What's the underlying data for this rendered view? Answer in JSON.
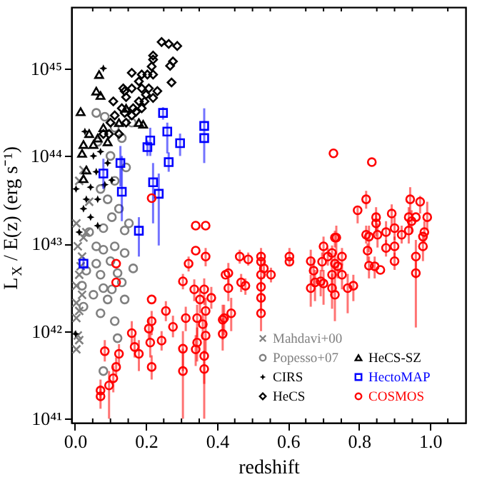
{
  "chart_data": {
    "type": "scatter",
    "xlabel": "redshift",
    "ylabel": "L$_{X}$ / E(z) (erg s⁻¹)",
    "log": "y",
    "grid": false,
    "legend": "bottom right",
    "xlim": [
      -0.01,
      1.1
    ],
    "xticks": [
      {
        "value": 0.0,
        "label": "0.0"
      },
      {
        "value": 0.05,
        "label": null
      },
      {
        "value": 0.1,
        "label": null
      },
      {
        "value": 0.15,
        "label": null
      },
      {
        "value": 0.2,
        "label": "0.2"
      },
      {
        "value": 0.25,
        "label": null
      },
      {
        "value": 0.3,
        "label": null
      },
      {
        "value": 0.35,
        "label": null
      },
      {
        "value": 0.4,
        "label": "0.4"
      },
      {
        "value": 0.45,
        "label": null
      },
      {
        "value": 0.5,
        "label": null
      },
      {
        "value": 0.55,
        "label": null
      },
      {
        "value": 0.6,
        "label": "0.6"
      },
      {
        "value": 0.65,
        "label": null
      },
      {
        "value": 0.7,
        "label": null
      },
      {
        "value": 0.75,
        "label": null
      },
      {
        "value": 0.8,
        "label": "0.8"
      },
      {
        "value": 0.85,
        "label": null
      },
      {
        "value": 0.9,
        "label": null
      },
      {
        "value": 0.95,
        "label": null
      },
      {
        "value": 1.0,
        "label": "1.0"
      },
      {
        "value": 1.05,
        "label": null
      }
    ],
    "ylim": [
      9e+40,
      5e+45
    ],
    "yticks": [
      {
        "value": 1e+41,
        "label": "10⁴¹"
      },
      {
        "value": 1e+42,
        "label": "10⁴²"
      },
      {
        "value": 1e+43,
        "label": "10⁴³"
      },
      {
        "value": 1e+44,
        "label": "10⁴⁴"
      },
      {
        "value": 1e+45,
        "label": "10⁴⁵"
      }
    ],
    "series": [
      {
        "name": "Mahdavi+00",
        "color": "#808080",
        "marker": "cross",
        "x": [
          0.008,
          0.012,
          0.004,
          0.012,
          0.004,
          0.02,
          0.004,
          0.012,
          0.016,
          0.02,
          0.008,
          0.024,
          0.004,
          0.024,
          0.012,
          0.04,
          0.004,
          0.032
        ],
        "values": [
          8.9e+41,
          7.9e+41,
          1.41e+42,
          1.7e+42,
          2.1e+42,
          2.6e+42,
          3.3e+42,
          4.4e+42,
          5.5e+42,
          7.1e+42,
          9.3e+42,
          1.17e+43,
          6.2e+41,
          6.9e+43,
          5.2e+43,
          3e+43,
          1.7e+43,
          1.35e+43
        ]
      },
      {
        "name": "Popesso+07",
        "color": "#808080",
        "marker": "circle",
        "x": [
          0.04,
          0.06,
          0.08,
          0.112,
          0.14,
          0.1,
          0.06,
          0.032,
          0.072,
          0.12,
          0.08,
          0.104,
          0.132,
          0.052,
          0.092,
          0.14,
          0.072,
          0.112,
          0.12,
          0.164,
          0.08,
          0.02,
          0.024,
          0.072,
          0.092,
          0.112,
          0.124,
          0.104,
          0.152,
          0.08,
          0.14,
          0.1,
          0.132,
          0.112,
          0.084,
          0.06,
          0.16,
          0.064,
          0.144
        ],
        "values": [
          1.35e+43,
          9.3e+42,
          8.5e+42,
          9.3e+42,
          7.8e+42,
          6.3e+42,
          5.9e+42,
          4.9e+42,
          4.4e+42,
          4.6e+42,
          3.1e+42,
          3e+42,
          3.6e+42,
          2.6e+42,
          2.3e+42,
          2.3e+42,
          1.6e+42,
          1.3e+42,
          8.3e+41,
          5.2e+42,
          3.5e+41,
          3.3e+42,
          1.9e+42,
          4.2e+43,
          3.2e+43,
          5.2e+43,
          2.5e+43,
          2e+43,
          1.7e+43,
          1.5e+43,
          1.41e+43,
          1e+44,
          1.6e+44,
          2.1e+44,
          2.8e+44,
          3.1e+44,
          2.4e+44,
          1.45e+44,
          7.4e+43
        ]
      },
      {
        "name": "CIRS",
        "color": "#000000",
        "marker": "star",
        "x": [
          0.08,
          0.028,
          0.052,
          0.072,
          0.092,
          0.044,
          0.032,
          0.024,
          0.064,
          0.003,
          0.104,
          0.06,
          0.084,
          0.044,
          0.064,
          0.002,
          0.012
        ],
        "values": [
          1e+45,
          1.9e+44,
          1e+44,
          1.12e+44,
          8.3e+43,
          4.4e+43,
          3.2e+43,
          2.5e+43,
          3.2e+43,
          4.2e+43,
          5.3e+43,
          6.6e+43,
          4.7e+43,
          2e+43,
          1.6e+43,
          9.3e+41,
          1.35e+43
        ]
      },
      {
        "name": "HeCS",
        "color": "#000000",
        "marker": "diamond",
        "x": [
          0.244,
          0.264,
          0.288,
          0.22,
          0.22,
          0.276,
          0.268,
          0.272,
          0.216,
          0.204,
          0.22,
          0.16,
          0.136,
          0.14,
          0.144,
          0.16,
          0.18,
          0.188,
          0.2,
          0.208,
          0.196,
          0.18,
          0.164,
          0.132,
          0.108,
          0.112,
          0.1,
          0.096,
          0.124,
          0.14,
          0.16,
          0.172,
          0.144,
          0.08,
          0.22,
          0.232,
          0.188,
          0.188
        ],
        "values": [
          2e+45,
          1.9e+45,
          1.8e+45,
          1.4e+45,
          1.26e+45,
          1.2e+45,
          1.07e+45,
          6.9e+44,
          1.05e+45,
          8.5e+44,
          8.5e+44,
          8.9e+44,
          5.9e+44,
          5.5e+44,
          4.7e+44,
          5.9e+44,
          7.1e+44,
          5.9e+44,
          5e+44,
          5.9e+44,
          4.2e+44,
          4.2e+44,
          3.5e+44,
          3.5e+44,
          4.2e+44,
          2.9e+44,
          2.4e+44,
          1.78e+44,
          1.78e+44,
          3.1e+44,
          2.9e+44,
          3.2e+44,
          2.4e+44,
          1.78e+44,
          4.6e+44,
          5.5e+44,
          3.5e+44,
          8.5e+44
        ]
      },
      {
        "name": "HeCS-SZ",
        "color": "#000000",
        "marker": "triangle",
        "x": [
          0.068,
          0.06,
          0.072,
          0.016,
          0.04,
          0.024,
          0.02,
          0.052,
          0.08,
          0.144,
          0.18,
          0.192,
          0.124,
          0.032,
          0.024,
          0.064,
          0.092
        ],
        "values": [
          8.5e+44,
          5.5e+44,
          4.9e+44,
          3.2e+44,
          1.8e+44,
          1.35e+44,
          1.07e+44,
          1.35e+44,
          2.1e+44,
          3.5e+44,
          2.4e+44,
          2.3e+44,
          2.4e+44,
          6.9e+43,
          5.5e+43,
          1.6e+44,
          1.45e+44
        ]
      },
      {
        "name": "HectoMAP",
        "color": "#0000ff",
        "marker": "square",
        "x": [
          0.08,
          0.128,
          0.132,
          0.18,
          0.204,
          0.212,
          0.22,
          0.236,
          0.248,
          0.26,
          0.264,
          0.296,
          0.364,
          0.364,
          0.024
        ],
        "values": [
          6.3e+43,
          8.3e+43,
          3.9e+43,
          1.4e+43,
          1.26e+44,
          1.5e+44,
          5e+43,
          3.7e+43,
          3.1e+44,
          1.9e+44,
          8.5e+43,
          1.4e+44,
          2.2e+44,
          1.6e+44,
          5.9e+42
        ],
        "errors": [
          [
            4.2e+43,
            9.3e+43
          ],
          [
            4.5e+43,
            1.3e+44
          ],
          [
            1.8e+43,
            1e+44
          ],
          [
            7.1e+42,
            2e+43
          ],
          [
            1e+44,
            1.5e+44
          ],
          [
            1e+44,
            2.1e+44
          ],
          [
            1.7e+43,
            8.3e+43
          ],
          [
            9.5e+42,
            6.3e+43
          ],
          [
            2.6e+44,
            3.6e+44
          ],
          [
            1.07e+44,
            2.4e+44
          ],
          [
            6.6e+43,
            1.1e+44
          ],
          [
            1e+44,
            1.8e+44
          ],
          [
            8.3e+43,
            3.5e+44
          ],
          null,
          [
            5e+42,
            7e+42
          ]
        ]
      },
      {
        "name": "COSMOS",
        "color": "#ff0000",
        "marker": "circle",
        "x": [
          0.728,
          0.836,
          0.796,
          0.82,
          0.848,
          0.892,
          0.944,
          0.972,
          0.94,
          0.96,
          0.992,
          0.948,
          0.848,
          0.828,
          0.852,
          0.876,
          0.9,
          0.94,
          0.984,
          0.736,
          0.216,
          0.34,
          0.368,
          0.416,
          0.416,
          0.44,
          0.432,
          0.432,
          0.464,
          0.468,
          0.48,
          0.488,
          0.524,
          0.524,
          0.532,
          0.524,
          0.524,
          0.524,
          0.524,
          0.552,
          0.604,
          0.604,
          0.664,
          0.672,
          0.676,
          0.664,
          0.692,
          0.696,
          0.7,
          0.712,
          0.7,
          0.724,
          0.732,
          0.732,
          0.724,
          0.724,
          0.732,
          0.74,
          0.752,
          0.752,
          0.768,
          0.784,
          0.82,
          0.824,
          0.828,
          0.844,
          0.86,
          0.876,
          0.9,
          0.9,
          0.92,
          0.96,
          0.96,
          0.98,
          0.98,
          0.072,
          0.072,
          0.084,
          0.096,
          0.108,
          0.116,
          0.124,
          0.116,
          0.116,
          0.16,
          0.168,
          0.18,
          0.212,
          0.208,
          0.216,
          0.216,
          0.216,
          0.244,
          0.256,
          0.276,
          0.304,
          0.304,
          0.304,
          0.32,
          0.312,
          0.336,
          0.34,
          0.344,
          0.344,
          0.34,
          0.352,
          0.36,
          0.364,
          0.368,
          0.368,
          0.364,
          0.364,
          0.384,
          0.368,
          0.42,
          0.424
        ],
        "values": [
          1.07e+44,
          8.5e+43,
          2.4e+43,
          3.2e+43,
          2e+43,
          2.2e+43,
          3.2e+43,
          3e+43,
          2e+43,
          2e+43,
          2e+43,
          1.8e+43,
          1.7e+43,
          1.2e+43,
          1.26e+43,
          1.35e+43,
          1.5e+43,
          1.41e+43,
          1.35e+43,
          1.17e+43,
          3.3e+43,
          1.6e+43,
          1.6e+43,
          1.35e+42,
          9.3e+41,
          1.6e+42,
          4.6e+42,
          3.1e+42,
          7.1e+42,
          3.6e+42,
          3.3e+42,
          6.6e+42,
          7.1e+42,
          6.2e+42,
          5.2e+42,
          4.4e+42,
          3.2e+42,
          2.4e+42,
          1.6e+42,
          4.4e+42,
          7.1e+42,
          6.2e+42,
          6.3e+42,
          4.9e+42,
          3.6e+42,
          3.1e+42,
          3.7e+42,
          6.2e+42,
          9.3e+42,
          7.1e+42,
          3.5e+42,
          7.8e+42,
          1.17e+43,
          5.9e+42,
          4.4e+42,
          3.1e+42,
          2.6e+42,
          5.5e+42,
          7.1e+42,
          4.4e+42,
          3.1e+42,
          3.3e+42,
          1.26e+43,
          8.3e+42,
          5.6e+42,
          5.5e+42,
          5e+42,
          8.9e+42,
          9.3e+42,
          6.3e+42,
          1.26e+43,
          7.1e+42,
          4.6e+42,
          9.3e+42,
          1.2e+43,
          1.8e+41,
          2.1e+41,
          5.9e+41,
          2.4e+41,
          2.9e+41,
          3.9e+41,
          5.5e+41,
          5.9e+42,
          3.6e+42,
          9.5e+41,
          6.6e+41,
          5.5e+41,
          7.4e+41,
          1.07e+42,
          1.3e+42,
          3.9e+41,
          2.3e+42,
          7.8e+41,
          1.7e+42,
          1.12e+42,
          6.3e+41,
          3.5e+41,
          3.7e+42,
          5.9e+42,
          1.41e+42,
          3e+42,
          8.3e+42,
          1.41e+42,
          7.4e+41,
          6.2e+41,
          2.3e+42,
          1.2e+42,
          3e+42,
          1.7e+42,
          8.9e+41,
          5.2e+41,
          3.7e+41,
          2.4e+42,
          7.1e+42,
          1.41e+42,
          4.4e+42
        ],
        "errors": [
          null,
          null,
          [
            1.7e+43,
            2.6e+43
          ],
          [
            2.5e+43,
            4e+43
          ],
          [
            1.4e+43,
            2.6e+43
          ],
          [
            1.6e+43,
            2.8e+43
          ],
          [
            2.2e+43,
            4.4e+43
          ],
          [
            2.2e+43,
            3.5e+43
          ],
          [
            1.5e+43,
            2.6e+43
          ],
          null,
          [
            1.4e+43,
            3e+43
          ],
          [
            1.3e+43,
            2.4e+43
          ],
          [
            1.2e+43,
            2.2e+43
          ],
          [
            8e+42,
            1.6e+43
          ],
          [
            9e+42,
            1.7e+43
          ],
          [
            1e+43,
            1.8e+43
          ],
          [
            1.1e+43,
            2e+43
          ],
          [
            1e+43,
            1.9e+43
          ],
          [
            1e+43,
            1.8e+43
          ],
          [
            7.5e+42,
            1.6e+43
          ],
          null,
          null,
          null,
          [
            8e+41,
            2e+42
          ],
          [
            6e+41,
            1.4e+42
          ],
          [
            1e+42,
            2.4e+42
          ],
          [
            3.5e+42,
            6e+42
          ],
          [
            2.2e+42,
            4e+42
          ],
          [
            5.9e+42,
            8.5e+42
          ],
          [
            2.8e+42,
            4.5e+42
          ],
          [
            2.6e+42,
            4e+42
          ],
          [
            5.6e+42,
            7.9e+42
          ],
          [
            5.6e+42,
            8.9e+42
          ],
          [
            4.8e+42,
            7.9e+42
          ],
          [
            4e+42,
            6.6e+42
          ],
          [
            3.2e+42,
            5.6e+42
          ],
          [
            2.2e+42,
            4.2e+42
          ],
          [
            1.6e+42,
            3.5e+42
          ],
          [
            1e+42,
            2.4e+42
          ],
          [
            3.6e+42,
            5.3e+42
          ],
          [
            5.6e+42,
            8.9e+42
          ],
          null,
          [
            4.5e+42,
            8.5e+42
          ],
          [
            3.2e+42,
            6.6e+42
          ],
          [
            2.2e+42,
            5e+42
          ],
          [
            1.9e+42,
            4.4e+42
          ],
          [
            2.5e+42,
            5e+42
          ],
          [
            4.8e+42,
            7.9e+42
          ],
          [
            7.1e+42,
            1.2e+43
          ],
          [
            5.6e+42,
            8.9e+42
          ],
          [
            2e+42,
            5e+42
          ],
          [
            6.3e+42,
            9.5e+42
          ],
          [
            9e+42,
            1.4e+43
          ],
          [
            4e+42,
            7.9e+42
          ],
          [
            2.8e+42,
            6.3e+42
          ],
          [
            1.8e+42,
            4.5e+42
          ],
          [
            1.3e+42,
            4e+42
          ],
          [
            4e+42,
            7.1e+42
          ],
          [
            5.6e+42,
            8.9e+42
          ],
          [
            3e+42,
            5.9e+42
          ],
          [
            1.6e+42,
            4.5e+42
          ],
          [
            2.2e+42,
            4.4e+42
          ],
          [
            1e+43,
            1.6e+43
          ],
          [
            6.3e+42,
            1e+43
          ],
          [
            4e+42,
            7.1e+42
          ],
          [
            4e+42,
            7.1e+42
          ],
          null,
          [
            7.1e+42,
            1.1e+43
          ],
          [
            7.1e+42,
            1.2e+43
          ],
          [
            5e+42,
            7.9e+42
          ],
          [
            1e+43,
            1.6e+43
          ],
          [
            4e+42,
            1.1e+43
          ],
          [
            1.1e+42,
            6.3e+42
          ],
          [
            6.3e+42,
            1.3e+43
          ],
          null,
          [
            1.3e+41,
            2.4e+41
          ],
          [
            1.6e+41,
            2.8e+41
          ],
          [
            4.5e+41,
            7.9e+41
          ],
          [
            1e+41,
            3.5e+41
          ],
          [
            2e+41,
            4e+41
          ],
          [
            3e+41,
            5e+41
          ],
          [
            4e+41,
            7.1e+41
          ],
          null,
          null,
          [
            7e+41,
            1.3e+42
          ],
          [
            5e+41,
            8.9e+41
          ],
          [
            3.5e+41,
            7.9e+41
          ],
          [
            5e+41,
            1e+42
          ],
          [
            8e+41,
            1.4e+42
          ],
          [
            9e+41,
            1.7e+42
          ],
          [
            2.8e+41,
            5.3e+41
          ],
          null,
          [
            6e+41,
            1e+42
          ],
          [
            1.3e+42,
            2.2e+42
          ],
          [
            8.5e+41,
            1.5e+42
          ],
          [
            3.5e+41,
            1e+42
          ],
          [
            1e+41,
            6.3e+41
          ],
          [
            3e+42,
            4.5e+42
          ],
          [
            4.8e+42,
            7.1e+42
          ],
          [
            1e+42,
            1.9e+42
          ],
          [
            2.2e+42,
            3.9e+42
          ],
          null,
          [
            8.5e+41,
            2e+42
          ],
          [
            4.5e+41,
            1.1e+42
          ],
          [
            4e+41,
            9e+41
          ],
          [
            1.6e+42,
            3e+42
          ],
          [
            8e+41,
            1.6e+42
          ],
          [
            2e+42,
            4e+42
          ],
          [
            1.1e+42,
            2.4e+42
          ],
          [
            5.5e+41,
            1.3e+42
          ],
          [
            2.5e+41,
            8e+41
          ],
          [
            1e+41,
            6e+41
          ],
          [
            1.8e+42,
            3.2e+42
          ],
          [
            5.5e+42,
            8.9e+42
          ],
          [
            9e+41,
            2e+42
          ],
          null
        ]
      }
    ]
  }
}
